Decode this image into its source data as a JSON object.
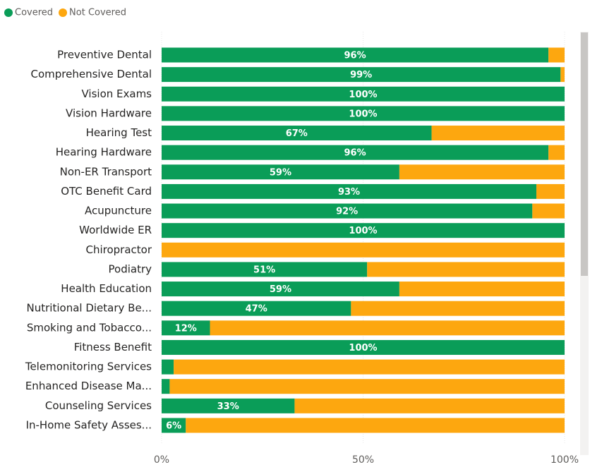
{
  "chart_data": {
    "type": "stacked_bar_horizontal",
    "categories": [
      "Preventive Dental",
      "Comprehensive Dental",
      "Vision Exams",
      "Vision Hardware",
      "Hearing Test",
      "Hearing Hardware",
      "Non-ER Transport",
      "OTC Benefit Card",
      "Acupuncture",
      "Worldwide ER",
      "Chiropractor",
      "Podiatry",
      "Health Education",
      "Nutritional Dietary Be...",
      "Smoking and Tobacco...",
      "Fitness Benefit",
      "Telemonitoring Services",
      "Enhanced Disease Ma...",
      "Counseling Services",
      "In-Home Safety Asses..."
    ],
    "series": [
      {
        "name": "Covered",
        "color": "#0a9d58",
        "values": [
          96,
          99,
          100,
          100,
          67,
          96,
          59,
          93,
          92,
          100,
          0,
          51,
          59,
          47,
          12,
          100,
          3,
          2,
          33,
          6
        ],
        "value_labels": [
          "96%",
          "99%",
          "100%",
          "100%",
          "67%",
          "96%",
          "59%",
          "93%",
          "92%",
          "100%",
          null,
          "51%",
          "59%",
          "47%",
          "12%",
          "100%",
          null,
          null,
          "33%",
          "6%"
        ]
      },
      {
        "name": "Not Covered",
        "color": "#fda70f",
        "values": [
          4,
          1,
          0,
          0,
          33,
          4,
          41,
          7,
          8,
          0,
          100,
          49,
          41,
          53,
          88,
          0,
          97,
          98,
          67,
          94
        ]
      }
    ],
    "xlim": [
      0,
      100
    ],
    "xticks": [
      {
        "value": 0,
        "label": "0%"
      },
      {
        "value": 50,
        "label": "50%"
      },
      {
        "value": 100,
        "label": "100%"
      }
    ],
    "grid": true,
    "legend": "top-left"
  }
}
